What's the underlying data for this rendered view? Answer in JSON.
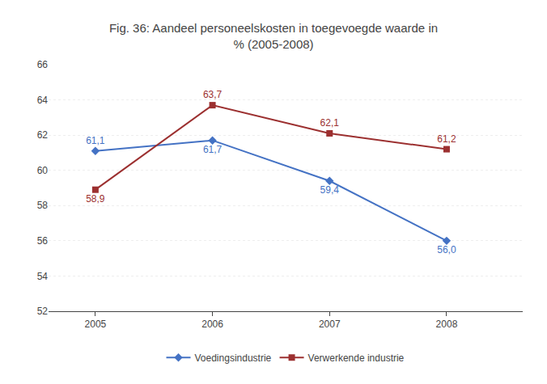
{
  "chart_data": {
    "type": "line",
    "title": "Fig. 36: Aandeel personeelskosten in toegevoegde waarde in\n% (2005-2008)",
    "x": [
      2005,
      2006,
      2007,
      2008
    ],
    "series": [
      {
        "name": "Voedingsindustrie",
        "color": "#4472C4",
        "marker": "diamond",
        "values": [
          61.1,
          61.7,
          59.4,
          56.0
        ],
        "value_labels": [
          "61,1",
          "61,7",
          "59,4",
          "56,0"
        ]
      },
      {
        "name": "Verwerkende industrie",
        "color": "#9C3030",
        "marker": "square",
        "values": [
          58.9,
          63.7,
          62.1,
          61.2
        ],
        "value_labels": [
          "58,9",
          "63,7",
          "62,1",
          "61,2"
        ]
      }
    ],
    "xlim": [
      2004.6,
      2008.65
    ],
    "xticks": [
      2005,
      2006,
      2007,
      2008
    ],
    "ylim": [
      52,
      66
    ],
    "yticks": [
      52,
      54,
      56,
      58,
      60,
      62,
      64,
      66
    ],
    "grid": true,
    "legend": "bottom",
    "data_labels": true
  }
}
